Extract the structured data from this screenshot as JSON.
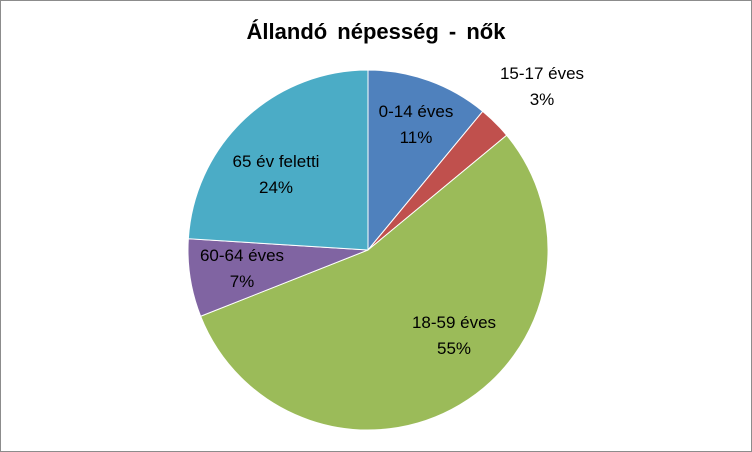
{
  "chart_data": {
    "type": "pie",
    "title": "Állandó népesség - nők",
    "start_angle_deg": 0,
    "direction": "clockwise",
    "slices": [
      {
        "category": "0-14 éves",
        "percent_label": "11%",
        "value": 11,
        "color": "#4F81BD"
      },
      {
        "category": "15-17 éves",
        "percent_label": "3%",
        "value": 3,
        "color": "#C0504D"
      },
      {
        "category": "18-59 éves",
        "percent_label": "55%",
        "value": 55,
        "color": "#9BBB59"
      },
      {
        "category": "60-64 éves",
        "percent_label": "7%",
        "value": 7,
        "color": "#8064A2"
      },
      {
        "category": "65 év feletti",
        "percent_label": "24%",
        "value": 24,
        "color": "#4BACC6"
      }
    ]
  }
}
